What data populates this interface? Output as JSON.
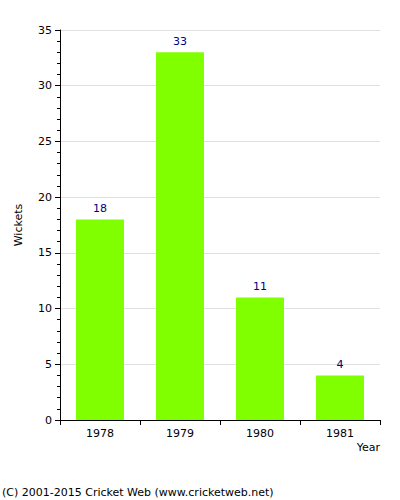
{
  "chart_data": {
    "type": "bar",
    "x_label": "Year",
    "y_label": "Wickets",
    "categories": [
      "1978",
      "1979",
      "1980",
      "1981"
    ],
    "values": [
      18,
      33,
      11,
      4
    ],
    "color": "#80ff00",
    "ylim": [
      0,
      35
    ],
    "yticks": [
      0,
      5,
      10,
      15,
      20,
      25,
      30,
      35
    ],
    "grid": true,
    "data_labels": true,
    "annotations": [
      "(C) 2001-2015 Cricket Web (www.cricketweb.net)"
    ]
  }
}
